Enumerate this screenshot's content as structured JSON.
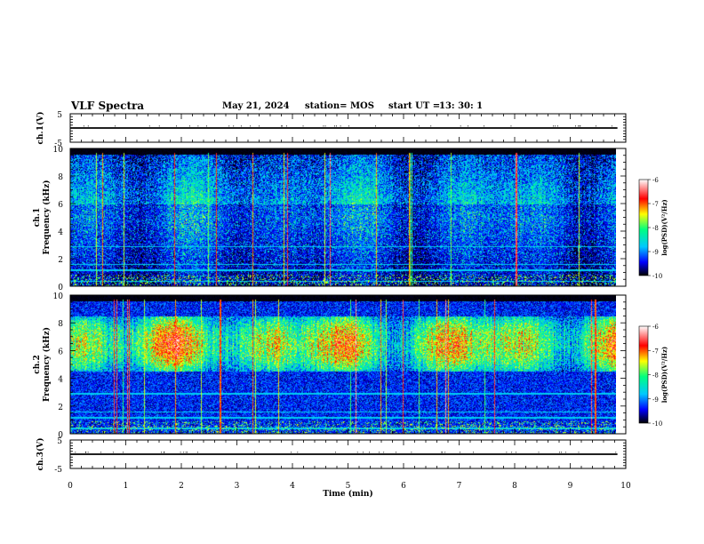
{
  "header": {
    "title": "VLF Spectra",
    "date": "May 21, 2024",
    "station_label": "station= MOS",
    "start_label": "start  UT  =",
    "start_time": "13: 30: 1"
  },
  "colors": {
    "colormap": [
      "#000000",
      "#1010a0",
      "#0000ff",
      "#00c8ff",
      "#00ff80",
      "#ffff00",
      "#ff0000",
      "#ffffff"
    ]
  },
  "chart_data": [
    {
      "type": "line",
      "name": "ch1-waveform",
      "ylabel": "ch.1(V)",
      "ylim": [
        -5,
        5
      ],
      "yticks": [
        "5",
        "-5"
      ],
      "x": [
        0,
        9.85
      ],
      "y": [
        0,
        0
      ]
    },
    {
      "type": "heatmap",
      "name": "ch1-spectrogram",
      "ylabel": "ch.1\nFrequency (kHz)",
      "ylim": [
        0,
        10
      ],
      "yticks": [
        "0",
        "2",
        "4",
        "6",
        "8",
        "10"
      ],
      "xlim": [
        0,
        10
      ],
      "band_khz": [
        0,
        10
      ],
      "colorbar": {
        "label": "log(PSD)(V²/Hz)",
        "range": [
          -10,
          -6
        ],
        "ticks": [
          "-6",
          "-7",
          "-8",
          "-9",
          "-10"
        ]
      }
    },
    {
      "type": "heatmap",
      "name": "ch2-spectrogram",
      "ylabel": "ch.2\nFrequency (kHz)",
      "ylim": [
        0,
        10
      ],
      "yticks": [
        "0",
        "2",
        "4",
        "6",
        "8",
        "10"
      ],
      "xlim": [
        0,
        10
      ],
      "band_khz": [
        4.5,
        8.5
      ],
      "colorbar": {
        "label": "log(PSD)(V²/Hz)",
        "range": [
          -10,
          -6
        ],
        "ticks": [
          "-6",
          "-7",
          "-8",
          "-9",
          "-10"
        ]
      }
    },
    {
      "type": "line",
      "name": "ch3-waveform",
      "ylabel": "ch.3(V)",
      "ylim": [
        -5,
        5
      ],
      "yticks": [
        "5",
        "-5"
      ],
      "x": [
        0,
        9.85
      ],
      "y": [
        0,
        0
      ]
    }
  ],
  "xaxis": {
    "label": "Time (min)",
    "xlim": [
      0,
      10
    ],
    "ticks": [
      "0",
      "1",
      "2",
      "3",
      "4",
      "5",
      "6",
      "7",
      "8",
      "9",
      "10"
    ]
  }
}
